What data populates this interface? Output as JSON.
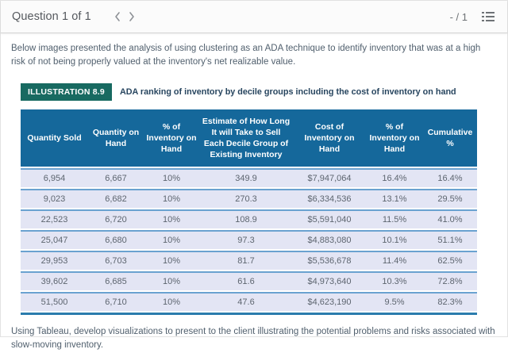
{
  "topbar": {
    "title": "Question 1 of 1",
    "score": "- / 1"
  },
  "intro": "Below images presented the analysis of using clustering as an ADA technique to identify inventory that was at a high risk of not being properly valued at the inventory's net realizable value.",
  "illustration": {
    "badge": "ILLUSTRATION 8.9",
    "caption": "ADA ranking of inventory by decile groups including the cost of inventory on hand"
  },
  "table": {
    "columns": [
      "Quantity Sold",
      "Quantity on Hand",
      "% of Inventory on Hand",
      "Estimate of How Long It will Take to Sell Each Decile Group of Existing Inventory",
      "Cost of Inventory on Hand",
      "% of Inventory on Hand",
      "Cumulative %"
    ],
    "rows": [
      [
        "6,954",
        "6,667",
        "10%",
        "349.9",
        "$7,947,064",
        "16.4%",
        "16.4%"
      ],
      [
        "9,023",
        "6,682",
        "10%",
        "270.3",
        "$6,334,536",
        "13.1%",
        "29.5%"
      ],
      [
        "22,523",
        "6,720",
        "10%",
        "108.9",
        "$5,591,040",
        "11.5%",
        "41.0%"
      ],
      [
        "25,047",
        "6,680",
        "10%",
        "97.3",
        "$4,883,080",
        "10.1%",
        "51.1%"
      ],
      [
        "29,953",
        "6,703",
        "10%",
        "81.7",
        "$5,536,678",
        "11.4%",
        "62.5%"
      ],
      [
        "39,602",
        "6,685",
        "10%",
        "61.6",
        "$4,973,640",
        "10.3%",
        "72.8%"
      ],
      [
        "51,500",
        "6,710",
        "10%",
        "47.6",
        "$4,623,190",
        "9.5%",
        "82.3%"
      ]
    ]
  },
  "outro": "Using Tableau, develop visualizations to present to the client illustrating the potential problems and risks associated with slow-moving inventory.",
  "colors": {
    "header_blue": "#15689b",
    "badge_teal": "#186a61",
    "row_lavender": "#e3e5f4",
    "separator_blue": "#6aa2d0",
    "table_bottom_blue": "#2b7cad"
  }
}
